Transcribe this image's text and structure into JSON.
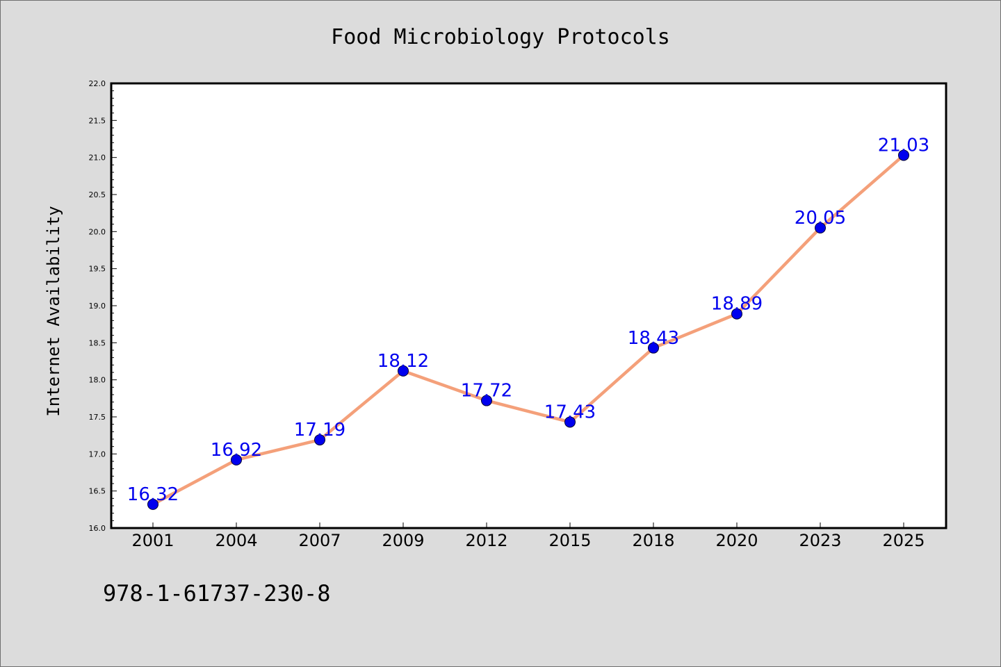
{
  "chart_data": {
    "type": "line",
    "title": "Food Microbiology Protocols",
    "xlabel": "",
    "ylabel": "Internet Availability",
    "categories": [
      "2001",
      "2004",
      "2007",
      "2009",
      "2012",
      "2015",
      "2018",
      "2020",
      "2023",
      "2025"
    ],
    "series": [
      {
        "values": [
          16.32,
          16.92,
          17.19,
          18.12,
          17.72,
          17.43,
          18.43,
          18.89,
          20.05,
          21.03
        ]
      }
    ],
    "data_labels": [
      "16.32",
      "16.92",
      "17.19",
      "18.12",
      "17.72",
      "17.43",
      "18.43",
      "18.89",
      "20.05",
      "21.03"
    ],
    "ylim": [
      16.0,
      22.0
    ],
    "yticks": [
      "16.0",
      "16.5",
      "17.0",
      "17.5",
      "18.0",
      "18.5",
      "19.0",
      "19.5",
      "20.0",
      "20.5",
      "21.0",
      "21.5",
      "22.0"
    ],
    "grid": false,
    "legend": "none",
    "colors": {
      "line": "#f4a07a",
      "marker": "#0000ee",
      "data_label": "#0000ee",
      "plot_background": "#ffffff",
      "page_background": "#dcdcdc"
    }
  },
  "annotation": {
    "isbn": "978-1-61737-230-8"
  }
}
